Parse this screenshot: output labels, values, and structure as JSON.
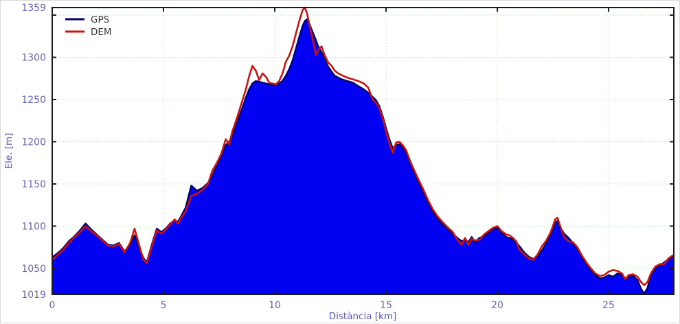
{
  "chart_data": {
    "type": "area",
    "title": "",
    "xlabel": "Distància [km]",
    "ylabel": "Ele. [m]",
    "xlim": [
      0,
      27.93
    ],
    "ylim": [
      1019,
      1359
    ],
    "x_ticks": [
      0,
      5,
      10,
      15,
      20,
      25
    ],
    "y_ticks": [
      1019,
      1050,
      1100,
      1150,
      1200,
      1250,
      1300,
      1359
    ],
    "x_gridlines": [
      5,
      10,
      15,
      20,
      25
    ],
    "y_gridlines": [
      1050,
      1100,
      1150,
      1200,
      1250,
      1300,
      1350
    ],
    "grid": true,
    "legend_position": "top-left",
    "x": [
      0.0,
      0.25,
      0.5,
      0.75,
      1.0,
      1.25,
      1.5,
      1.75,
      2.0,
      2.25,
      2.5,
      2.75,
      3.0,
      3.25,
      3.5,
      3.7,
      3.9,
      4.1,
      4.25,
      4.5,
      4.7,
      4.9,
      5.1,
      5.3,
      5.5,
      5.65,
      5.8,
      6.0,
      6.25,
      6.5,
      6.75,
      7.0,
      7.2,
      7.4,
      7.6,
      7.8,
      7.95,
      8.1,
      8.3,
      8.5,
      8.7,
      8.85,
      9.0,
      9.15,
      9.3,
      9.45,
      9.6,
      9.75,
      9.9,
      10.05,
      10.2,
      10.35,
      10.5,
      10.65,
      10.8,
      10.95,
      11.1,
      11.25,
      11.35,
      11.45,
      11.55,
      11.7,
      11.85,
      11.95,
      12.1,
      12.25,
      12.4,
      12.55,
      12.7,
      12.85,
      13.0,
      13.25,
      13.5,
      13.75,
      14.0,
      14.2,
      14.4,
      14.55,
      14.7,
      14.85,
      15.0,
      15.15,
      15.3,
      15.45,
      15.6,
      15.75,
      15.9,
      16.1,
      16.3,
      16.5,
      16.7,
      16.9,
      17.1,
      17.3,
      17.5,
      17.75,
      18.0,
      18.2,
      18.4,
      18.55,
      18.7,
      18.85,
      19.0,
      19.2,
      19.4,
      19.6,
      19.8,
      20.0,
      20.2,
      20.4,
      20.55,
      20.7,
      20.85,
      21.0,
      21.2,
      21.4,
      21.6,
      21.8,
      22.0,
      22.2,
      22.4,
      22.6,
      22.7,
      22.8,
      23.0,
      23.2,
      23.4,
      23.6,
      23.8,
      24.0,
      24.2,
      24.4,
      24.6,
      24.8,
      25.0,
      25.2,
      25.4,
      25.6,
      25.75,
      25.9,
      26.1,
      26.3,
      26.45,
      26.6,
      26.75,
      26.9,
      27.1,
      27.3,
      27.5,
      27.7,
      27.93
    ],
    "series": [
      {
        "name": "GPS",
        "color": "#00006e",
        "fill": "#0202f2",
        "values": [
          1063,
          1068,
          1074,
          1082,
          1088,
          1095,
          1103,
          1096,
          1090,
          1084,
          1078,
          1077,
          1080,
          1070,
          1078,
          1089,
          1075,
          1062,
          1057,
          1080,
          1097,
          1093,
          1097,
          1103,
          1107,
          1105,
          1112,
          1122,
          1148,
          1142,
          1145,
          1151,
          1160,
          1172,
          1184,
          1196,
          1200,
          1207,
          1222,
          1237,
          1252,
          1262,
          1269,
          1272,
          1271,
          1270,
          1269,
          1268,
          1267,
          1267,
          1269,
          1272,
          1278,
          1286,
          1296,
          1310,
          1324,
          1337,
          1343,
          1345,
          1340,
          1330,
          1320,
          1313,
          1306,
          1297,
          1289,
          1283,
          1278,
          1276,
          1274,
          1272,
          1270,
          1266,
          1262,
          1258,
          1253,
          1249,
          1242,
          1230,
          1216,
          1203,
          1192,
          1196,
          1197,
          1193,
          1187,
          1174,
          1161,
          1150,
          1139,
          1127,
          1117,
          1109,
          1103,
          1097,
          1091,
          1086,
          1082,
          1084,
          1081,
          1087,
          1081,
          1086,
          1088,
          1092,
          1096,
          1098,
          1092,
          1087,
          1086,
          1084,
          1080,
          1076,
          1069,
          1064,
          1061,
          1064,
          1071,
          1080,
          1090,
          1104,
          1106,
          1099,
          1091,
          1086,
          1080,
          1073,
          1063,
          1055,
          1048,
          1042,
          1038,
          1039,
          1042,
          1040,
          1044,
          1042,
          1038,
          1040,
          1041,
          1036,
          1026,
          1020,
          1027,
          1042,
          1050,
          1053,
          1057,
          1061,
          1065
        ]
      },
      {
        "name": "DEM",
        "color": "#cc1212",
        "fill": "none",
        "values": [
          1060,
          1066,
          1072,
          1080,
          1087,
          1093,
          1100,
          1094,
          1089,
          1083,
          1077,
          1076,
          1079,
          1069,
          1080,
          1097,
          1078,
          1060,
          1056,
          1078,
          1095,
          1091,
          1096,
          1102,
          1108,
          1103,
          1110,
          1118,
          1136,
          1138,
          1143,
          1150,
          1166,
          1175,
          1186,
          1203,
          1197,
          1213,
          1228,
          1245,
          1262,
          1278,
          1290,
          1284,
          1273,
          1281,
          1277,
          1270,
          1269,
          1268,
          1272,
          1281,
          1295,
          1302,
          1313,
          1328,
          1343,
          1356,
          1359,
          1352,
          1340,
          1322,
          1303,
          1309,
          1313,
          1302,
          1294,
          1290,
          1284,
          1281,
          1279,
          1276,
          1274,
          1272,
          1269,
          1264,
          1250,
          1246,
          1240,
          1228,
          1213,
          1198,
          1187,
          1199,
          1200,
          1196,
          1190,
          1176,
          1164,
          1153,
          1142,
          1130,
          1120,
          1112,
          1106,
          1099,
          1093,
          1084,
          1078,
          1086,
          1078,
          1085,
          1083,
          1084,
          1090,
          1094,
          1098,
          1100,
          1094,
          1090,
          1089,
          1086,
          1082,
          1072,
          1067,
          1062,
          1060,
          1066,
          1076,
          1083,
          1093,
          1108,
          1110,
          1102,
          1087,
          1082,
          1081,
          1075,
          1065,
          1057,
          1050,
          1044,
          1041,
          1042,
          1046,
          1048,
          1047,
          1044,
          1037,
          1042,
          1043,
          1040,
          1034,
          1030,
          1034,
          1044,
          1052,
          1055,
          1055,
          1062,
          1066
        ]
      }
    ]
  },
  "legend": {
    "items": [
      {
        "label": "GPS",
        "color": "#00006e"
      },
      {
        "label": "DEM",
        "color": "#cc1212"
      }
    ]
  },
  "axes": {
    "x_title": "Distància [km]",
    "y_title": "Ele. [m]"
  },
  "style": {
    "grid_color": "#b5e2b5",
    "frame_color": "#1a1a1a",
    "tick_label_color": "#6464ba",
    "background": "#ffffff"
  }
}
